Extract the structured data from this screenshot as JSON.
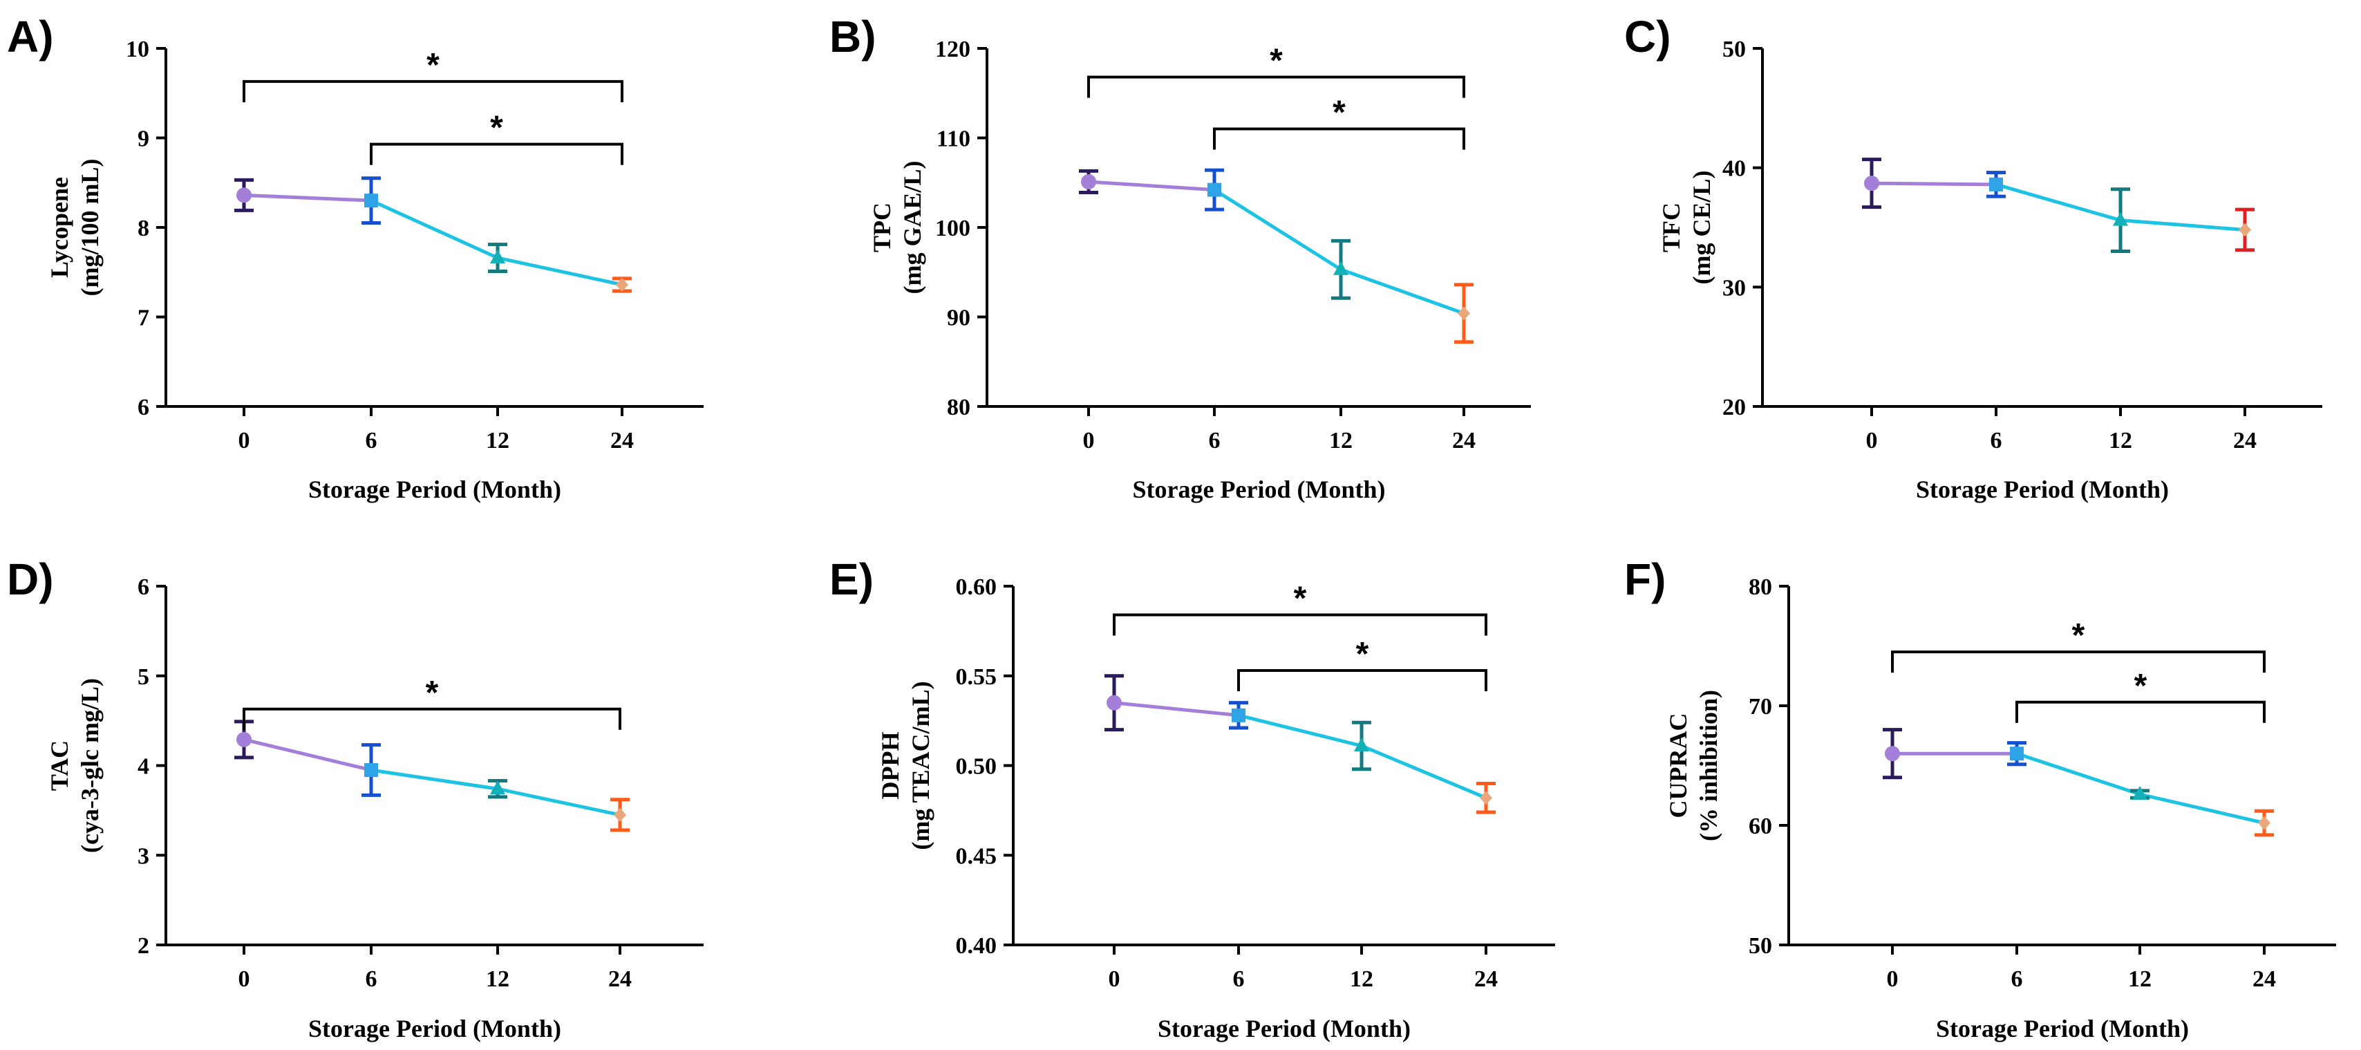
{
  "chart_data": [
    {
      "panel": "A)",
      "type": "line",
      "categories": [
        "0",
        "6",
        "12",
        "24"
      ],
      "values": [
        8.36,
        8.3,
        7.66,
        7.36
      ],
      "errors": [
        0.17,
        0.25,
        0.15,
        0.07
      ],
      "ylim": [
        6,
        10
      ],
      "yticks": [
        "6",
        "7",
        "8",
        "9",
        "10"
      ],
      "ylabel": [
        "Lycopene",
        "(mg/100 mL)"
      ],
      "xlabel": "Storage Period (Month)",
      "significance": [
        {
          "from": 0,
          "to": 3,
          "level": 9.63,
          "label": "*"
        },
        {
          "from": 1,
          "to": 3,
          "level": 8.93,
          "label": "*"
        }
      ]
    },
    {
      "panel": "B)",
      "type": "line",
      "categories": [
        "0",
        "6",
        "12",
        "24"
      ],
      "values": [
        105.1,
        104.2,
        95.3,
        90.4
      ],
      "errors": [
        1.2,
        2.2,
        3.2,
        3.2
      ],
      "ylim": [
        80,
        120
      ],
      "yticks": [
        "80",
        "90",
        "100",
        "110",
        "120"
      ],
      "ylabel": [
        "TPC",
        "(mg GAE/L)"
      ],
      "xlabel": "Storage Period (Month)",
      "significance": [
        {
          "from": 0,
          "to": 3,
          "level": 116.8,
          "label": "*"
        },
        {
          "from": 1,
          "to": 3,
          "level": 111.0,
          "label": "*"
        }
      ]
    },
    {
      "panel": "C)",
      "type": "line",
      "categories": [
        "0",
        "6",
        "12",
        "24"
      ],
      "values": [
        38.7,
        38.6,
        35.6,
        34.8
      ],
      "errors": [
        2.0,
        1.0,
        2.6,
        1.7
      ],
      "ylim": [
        20,
        50
      ],
      "yticks": [
        "20",
        "30",
        "40",
        "50"
      ],
      "ylabel": [
        "TFC",
        "(mg CE/L)"
      ],
      "xlabel": "Storage Period (Month)",
      "significance": []
    },
    {
      "panel": "D)",
      "type": "line",
      "categories": [
        "0",
        "6",
        "12",
        "24"
      ],
      "values": [
        4.29,
        3.95,
        3.74,
        3.45
      ],
      "errors": [
        0.2,
        0.28,
        0.09,
        0.17
      ],
      "ylim": [
        2,
        6
      ],
      "yticks": [
        "2",
        "3",
        "4",
        "5",
        "6"
      ],
      "ylabel": [
        "TAC",
        "(cya-3-glc mg/L)"
      ],
      "xlabel": "Storage Period (Month)",
      "significance": [
        {
          "from": 0,
          "to": 3,
          "level": 4.63,
          "label": "*"
        }
      ]
    },
    {
      "panel": "E)",
      "type": "line",
      "categories": [
        "0",
        "6",
        "12",
        "24"
      ],
      "values": [
        0.535,
        0.528,
        0.511,
        0.482
      ],
      "errors": [
        0.015,
        0.007,
        0.013,
        0.008
      ],
      "ylim": [
        0.4,
        0.6
      ],
      "yticks": [
        "0.40",
        "0.45",
        "0.50",
        "0.55",
        "0.60"
      ],
      "ylabel": [
        "DPPH",
        "(mg TEAC/mL)"
      ],
      "xlabel": "Storage Period (Month)",
      "significance": [
        {
          "from": 0,
          "to": 3,
          "level": 0.584,
          "label": "*"
        },
        {
          "from": 1,
          "to": 3,
          "level": 0.553,
          "label": "*"
        }
      ]
    },
    {
      "panel": "F)",
      "type": "line",
      "categories": [
        "0",
        "6",
        "12",
        "24"
      ],
      "values": [
        66.0,
        66.0,
        62.6,
        60.2
      ],
      "errors": [
        2.0,
        0.9,
        0.3,
        1.0
      ],
      "ylim": [
        50,
        80
      ],
      "yticks": [
        "50",
        "60",
        "70",
        "80"
      ],
      "ylabel": [
        "CUPRAC",
        "(% inhibition)"
      ],
      "xlabel": "Storage Period (Month)",
      "significance": [
        {
          "from": 0,
          "to": 3,
          "level": 74.5,
          "label": "*"
        },
        {
          "from": 1,
          "to": 3,
          "level": 70.3,
          "label": "*"
        }
      ]
    }
  ],
  "colors": {
    "segment_first": "#a37fd9",
    "segment_rest": "#1cc3e3",
    "marker_fill": [
      "#a37fd9",
      "#2ea3e6",
      "#14b0b8",
      "#e8a87c"
    ],
    "marker_shapes": [
      "circle",
      "square",
      "triangle",
      "diamond"
    ],
    "error_bars": [
      "#2b1a5e",
      "#1550d1",
      "#137a80",
      "#ff5a1a"
    ],
    "error_bar_last_panel_c": "#e02020",
    "axis": "#000000"
  }
}
